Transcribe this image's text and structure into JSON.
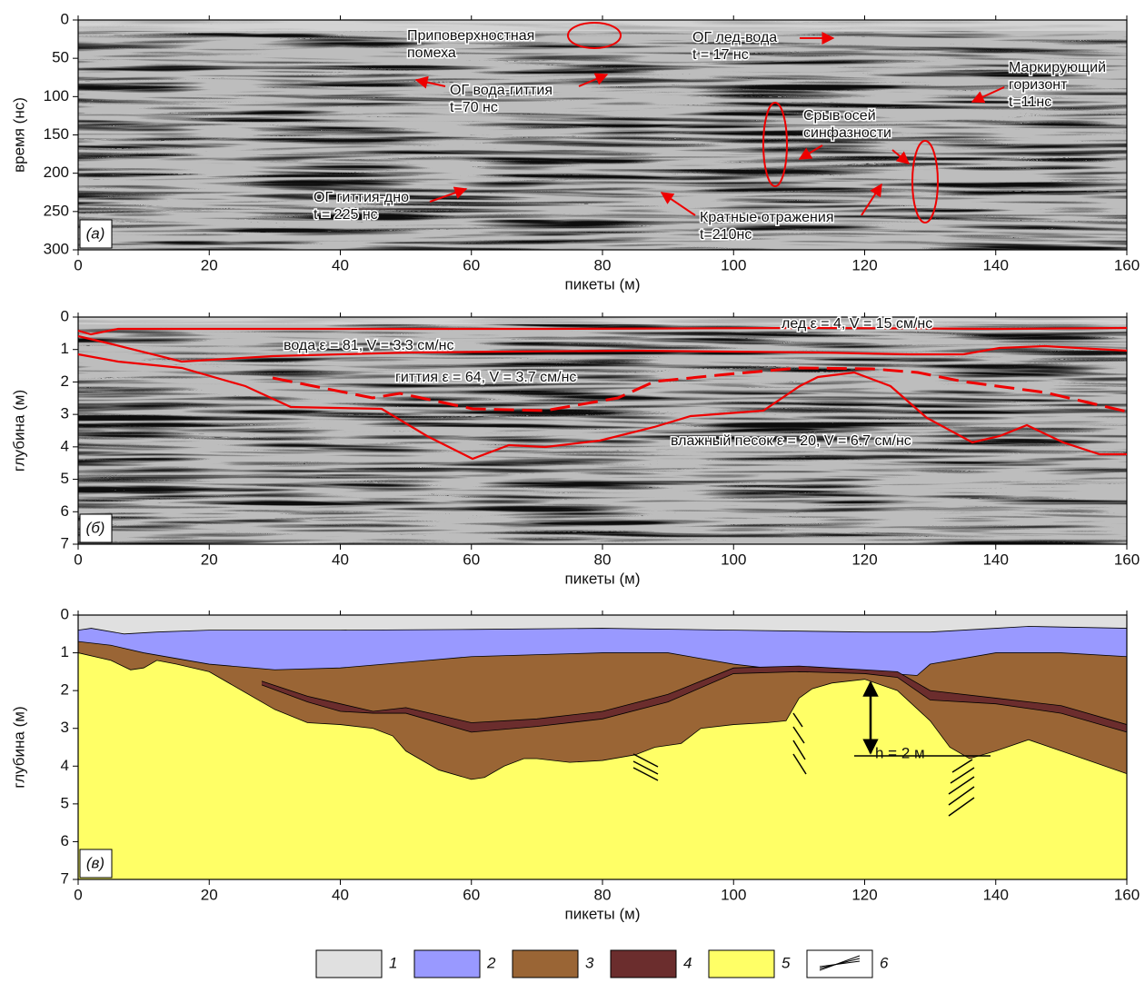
{
  "chart_data": [
    {
      "type": "radargram",
      "panel_label": "(а)",
      "y_label": "время (нс)",
      "x_label": "пикеты (м)",
      "xlim": [
        0,
        160
      ],
      "xticks": [
        0,
        20,
        40,
        60,
        80,
        100,
        120,
        140,
        160
      ],
      "ylim": [
        300,
        0
      ],
      "yticks": [
        0,
        50,
        100,
        150,
        200,
        250,
        300
      ],
      "annotations": [
        [
          "Приповерхностная",
          "помеха"
        ],
        [
          "ОГ лед-вода",
          "t = 17 нс"
        ],
        [
          "Маркирующий",
          "горизонт",
          "t=11нс"
        ],
        [
          "ОГ вода-гиттия",
          "t=70 нс"
        ],
        [
          "Срыв осей",
          "синфазности"
        ],
        [
          "ОГ гиттия-дно",
          "t = 225 нс"
        ],
        [
          "Кратные отражения",
          "t=210нс"
        ]
      ]
    },
    {
      "type": "radargram",
      "panel_label": "(б)",
      "y_label": "глубина (м)",
      "x_label": "пикеты (м)",
      "xlim": [
        0,
        160
      ],
      "xticks": [
        0,
        20,
        40,
        60,
        80,
        100,
        120,
        140,
        160
      ],
      "ylim": [
        7,
        0
      ],
      "yticks": [
        0,
        1,
        2,
        3,
        4,
        5,
        6,
        7
      ],
      "annotations": [
        [
          "лед ε = 4, V = 15 см/нс"
        ],
        [
          "вода ε = 81, V = 3.3 см/нс"
        ],
        [
          "гиттия ε = 64, V = 3.7 см/нс"
        ],
        [
          "влажный песок ε = 20, V = 6.7 см/нс"
        ]
      ]
    },
    {
      "type": "section",
      "panel_label": "(в)",
      "y_label": "глубина (м)",
      "x_label": "пикеты (м)",
      "xlim": [
        0,
        160
      ],
      "xticks": [
        0,
        20,
        40,
        60,
        80,
        100,
        120,
        140,
        160
      ],
      "ylim": [
        7,
        0
      ],
      "yticks": [
        0,
        1,
        2,
        3,
        4,
        5,
        6,
        7
      ],
      "annotations": [
        [
          "h = 2 м"
        ]
      ],
      "series": [
        {
          "name": "1",
          "color": "#e0e0e0",
          "x": [
            0,
            2,
            7,
            12,
            20,
            40,
            60,
            80,
            100,
            120,
            130,
            140,
            145,
            160
          ],
          "values": [
            0.4,
            0.35,
            0.5,
            0.45,
            0.4,
            0.4,
            0.38,
            0.35,
            0.4,
            0.45,
            0.45,
            0.35,
            0.3,
            0.35
          ]
        },
        {
          "name": "2",
          "color": "#9999ff",
          "x": [
            0,
            5,
            10,
            20,
            30,
            40,
            50,
            60,
            70,
            80,
            90,
            100,
            110,
            120,
            128,
            130,
            140,
            150,
            160
          ],
          "values": [
            0.7,
            0.8,
            1.0,
            1.3,
            1.45,
            1.4,
            1.25,
            1.1,
            1.05,
            1.0,
            1.0,
            1.3,
            1.5,
            1.5,
            1.6,
            1.3,
            1.0,
            1.0,
            1.1
          ]
        },
        {
          "name": "3",
          "color": "#9a6535",
          "x": [
            0,
            5,
            8,
            10,
            12,
            15,
            20,
            30,
            35,
            40,
            45,
            48,
            50,
            55,
            60,
            62,
            65,
            68,
            70,
            75,
            80,
            85,
            88,
            92,
            95,
            100,
            105,
            108,
            110,
            112,
            115,
            120,
            125,
            130,
            133,
            136,
            140,
            145,
            150,
            160
          ],
          "values": [
            1.0,
            1.2,
            1.45,
            1.4,
            1.2,
            1.3,
            1.5,
            2.5,
            2.85,
            2.9,
            3.0,
            3.2,
            3.6,
            4.1,
            4.35,
            4.3,
            4.0,
            3.8,
            3.8,
            3.9,
            3.85,
            3.7,
            3.5,
            3.4,
            3.0,
            2.9,
            2.85,
            2.8,
            2.2,
            1.95,
            1.8,
            1.7,
            2.0,
            2.8,
            3.5,
            3.8,
            3.6,
            3.3,
            3.6,
            4.2
          ]
        },
        {
          "name": "4",
          "color": "#6b2d2d",
          "x": [
            28,
            35,
            40,
            45,
            50,
            60,
            70,
            80,
            90,
            100,
            110,
            120,
            125,
            130,
            140,
            150,
            160
          ],
          "top": [
            1.75,
            2.15,
            2.35,
            2.55,
            2.45,
            2.85,
            2.75,
            2.55,
            2.1,
            1.4,
            1.35,
            1.45,
            1.5,
            2.0,
            2.2,
            2.4,
            2.9
          ],
          "values": [
            1.85,
            2.3,
            2.55,
            2.6,
            2.6,
            3.1,
            2.95,
            2.75,
            2.3,
            1.55,
            1.5,
            1.55,
            1.65,
            2.25,
            2.35,
            2.6,
            3.1
          ]
        },
        {
          "name": "5",
          "color": "#ffff66"
        }
      ],
      "hatch_legend": "6"
    }
  ]
}
